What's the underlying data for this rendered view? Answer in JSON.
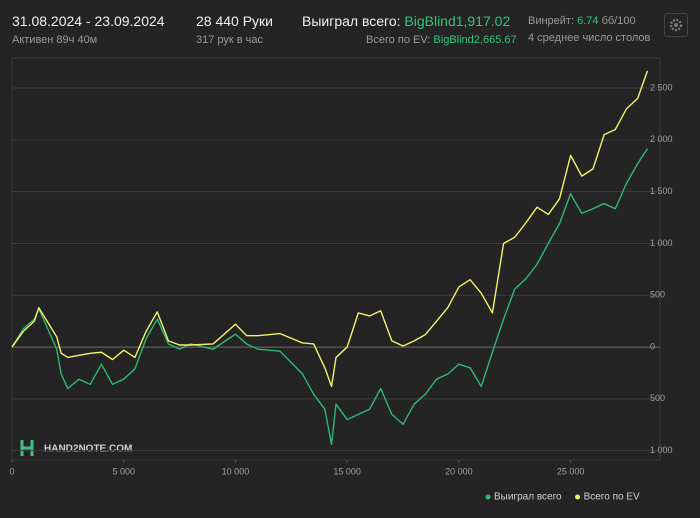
{
  "header": {
    "date_range": "31.08.2024 - 23.09.2024",
    "active": "Активен 89ч 40м",
    "hands": "28 440 Руки",
    "hands_per_hour": "317 рук в час",
    "won_label": "Выиграл всего:",
    "won_value": "BigBlind1,917.02",
    "ev_label": "Всего по EV:",
    "ev_value": "BigBlind2,665.67",
    "winrate_label": "Винрейт:",
    "winrate_value": "6.74",
    "winrate_unit": "бб/100",
    "tables": "4 среднее число столов",
    "watermark": "HAND2NOTE.COM"
  },
  "chart_data": {
    "type": "line",
    "x": [
      0,
      500,
      1000,
      1200,
      2000,
      2200,
      2500,
      3000,
      3500,
      4000,
      4500,
      5000,
      5500,
      6000,
      6500,
      7000,
      7500,
      8000,
      9000,
      10000,
      10500,
      11000,
      12000,
      13000,
      13500,
      14000,
      14300,
      14500,
      15000,
      15500,
      16000,
      16500,
      17000,
      17500,
      18000,
      18500,
      19000,
      19500,
      20000,
      20500,
      21000,
      21500,
      22000,
      22500,
      23000,
      23500,
      24000,
      24500,
      25000,
      25500,
      26000,
      26500,
      27000,
      27500,
      28000,
      28440
    ],
    "series": [
      {
        "name": "Выиграл всего",
        "color": "#2fb872",
        "values": [
          0,
          175,
          270,
          370,
          -20,
          -260,
          -400,
          -310,
          -360,
          -165,
          -360,
          -310,
          -210,
          80,
          270,
          30,
          -20,
          30,
          -20,
          125,
          30,
          -20,
          -40,
          -260,
          -455,
          -600,
          -940,
          -550,
          -700,
          -650,
          -600,
          -400,
          -650,
          -745,
          -550,
          -455,
          -310,
          -260,
          -165,
          -200,
          -380,
          -50,
          270,
          560,
          660,
          800,
          1000,
          1190,
          1480,
          1290,
          1335,
          1385,
          1335,
          1580,
          1770,
          1917.02
        ]
      },
      {
        "name": "Всего по EV",
        "color": "#f3f36a",
        "values": [
          0,
          150,
          250,
          380,
          100,
          -60,
          -100,
          -80,
          -60,
          -50,
          -120,
          -30,
          -100,
          150,
          340,
          60,
          20,
          20,
          30,
          220,
          110,
          110,
          130,
          40,
          30,
          -200,
          -380,
          -100,
          0,
          330,
          300,
          350,
          60,
          10,
          60,
          120,
          250,
          380,
          580,
          650,
          520,
          330,
          1000,
          1060,
          1200,
          1350,
          1280,
          1430,
          1850,
          1650,
          1720,
          2050,
          2100,
          2300,
          2400,
          2665.67
        ]
      }
    ],
    "xlim": [
      0,
      29000
    ],
    "ylim": [
      -1090,
      2790
    ],
    "xticks": [
      0,
      {
        "value": 5000,
        "label": "5 000"
      },
      {
        "value": 10000,
        "label": "10 000"
      },
      {
        "value": 15000,
        "label": "15 000"
      },
      {
        "value": 20000,
        "label": "20 000"
      },
      {
        "value": 25000,
        "label": "25 000"
      }
    ],
    "yticks": [
      {
        "value": -1000,
        "label": "1 000"
      },
      {
        "value": -500,
        "label": "500"
      },
      0,
      500,
      {
        "value": 1000,
        "label": "1 000"
      },
      {
        "value": 1500,
        "label": "1 500"
      },
      {
        "value": 2000,
        "label": "2 000"
      },
      {
        "value": 2500,
        "label": "2 500"
      }
    ],
    "grid": true
  }
}
